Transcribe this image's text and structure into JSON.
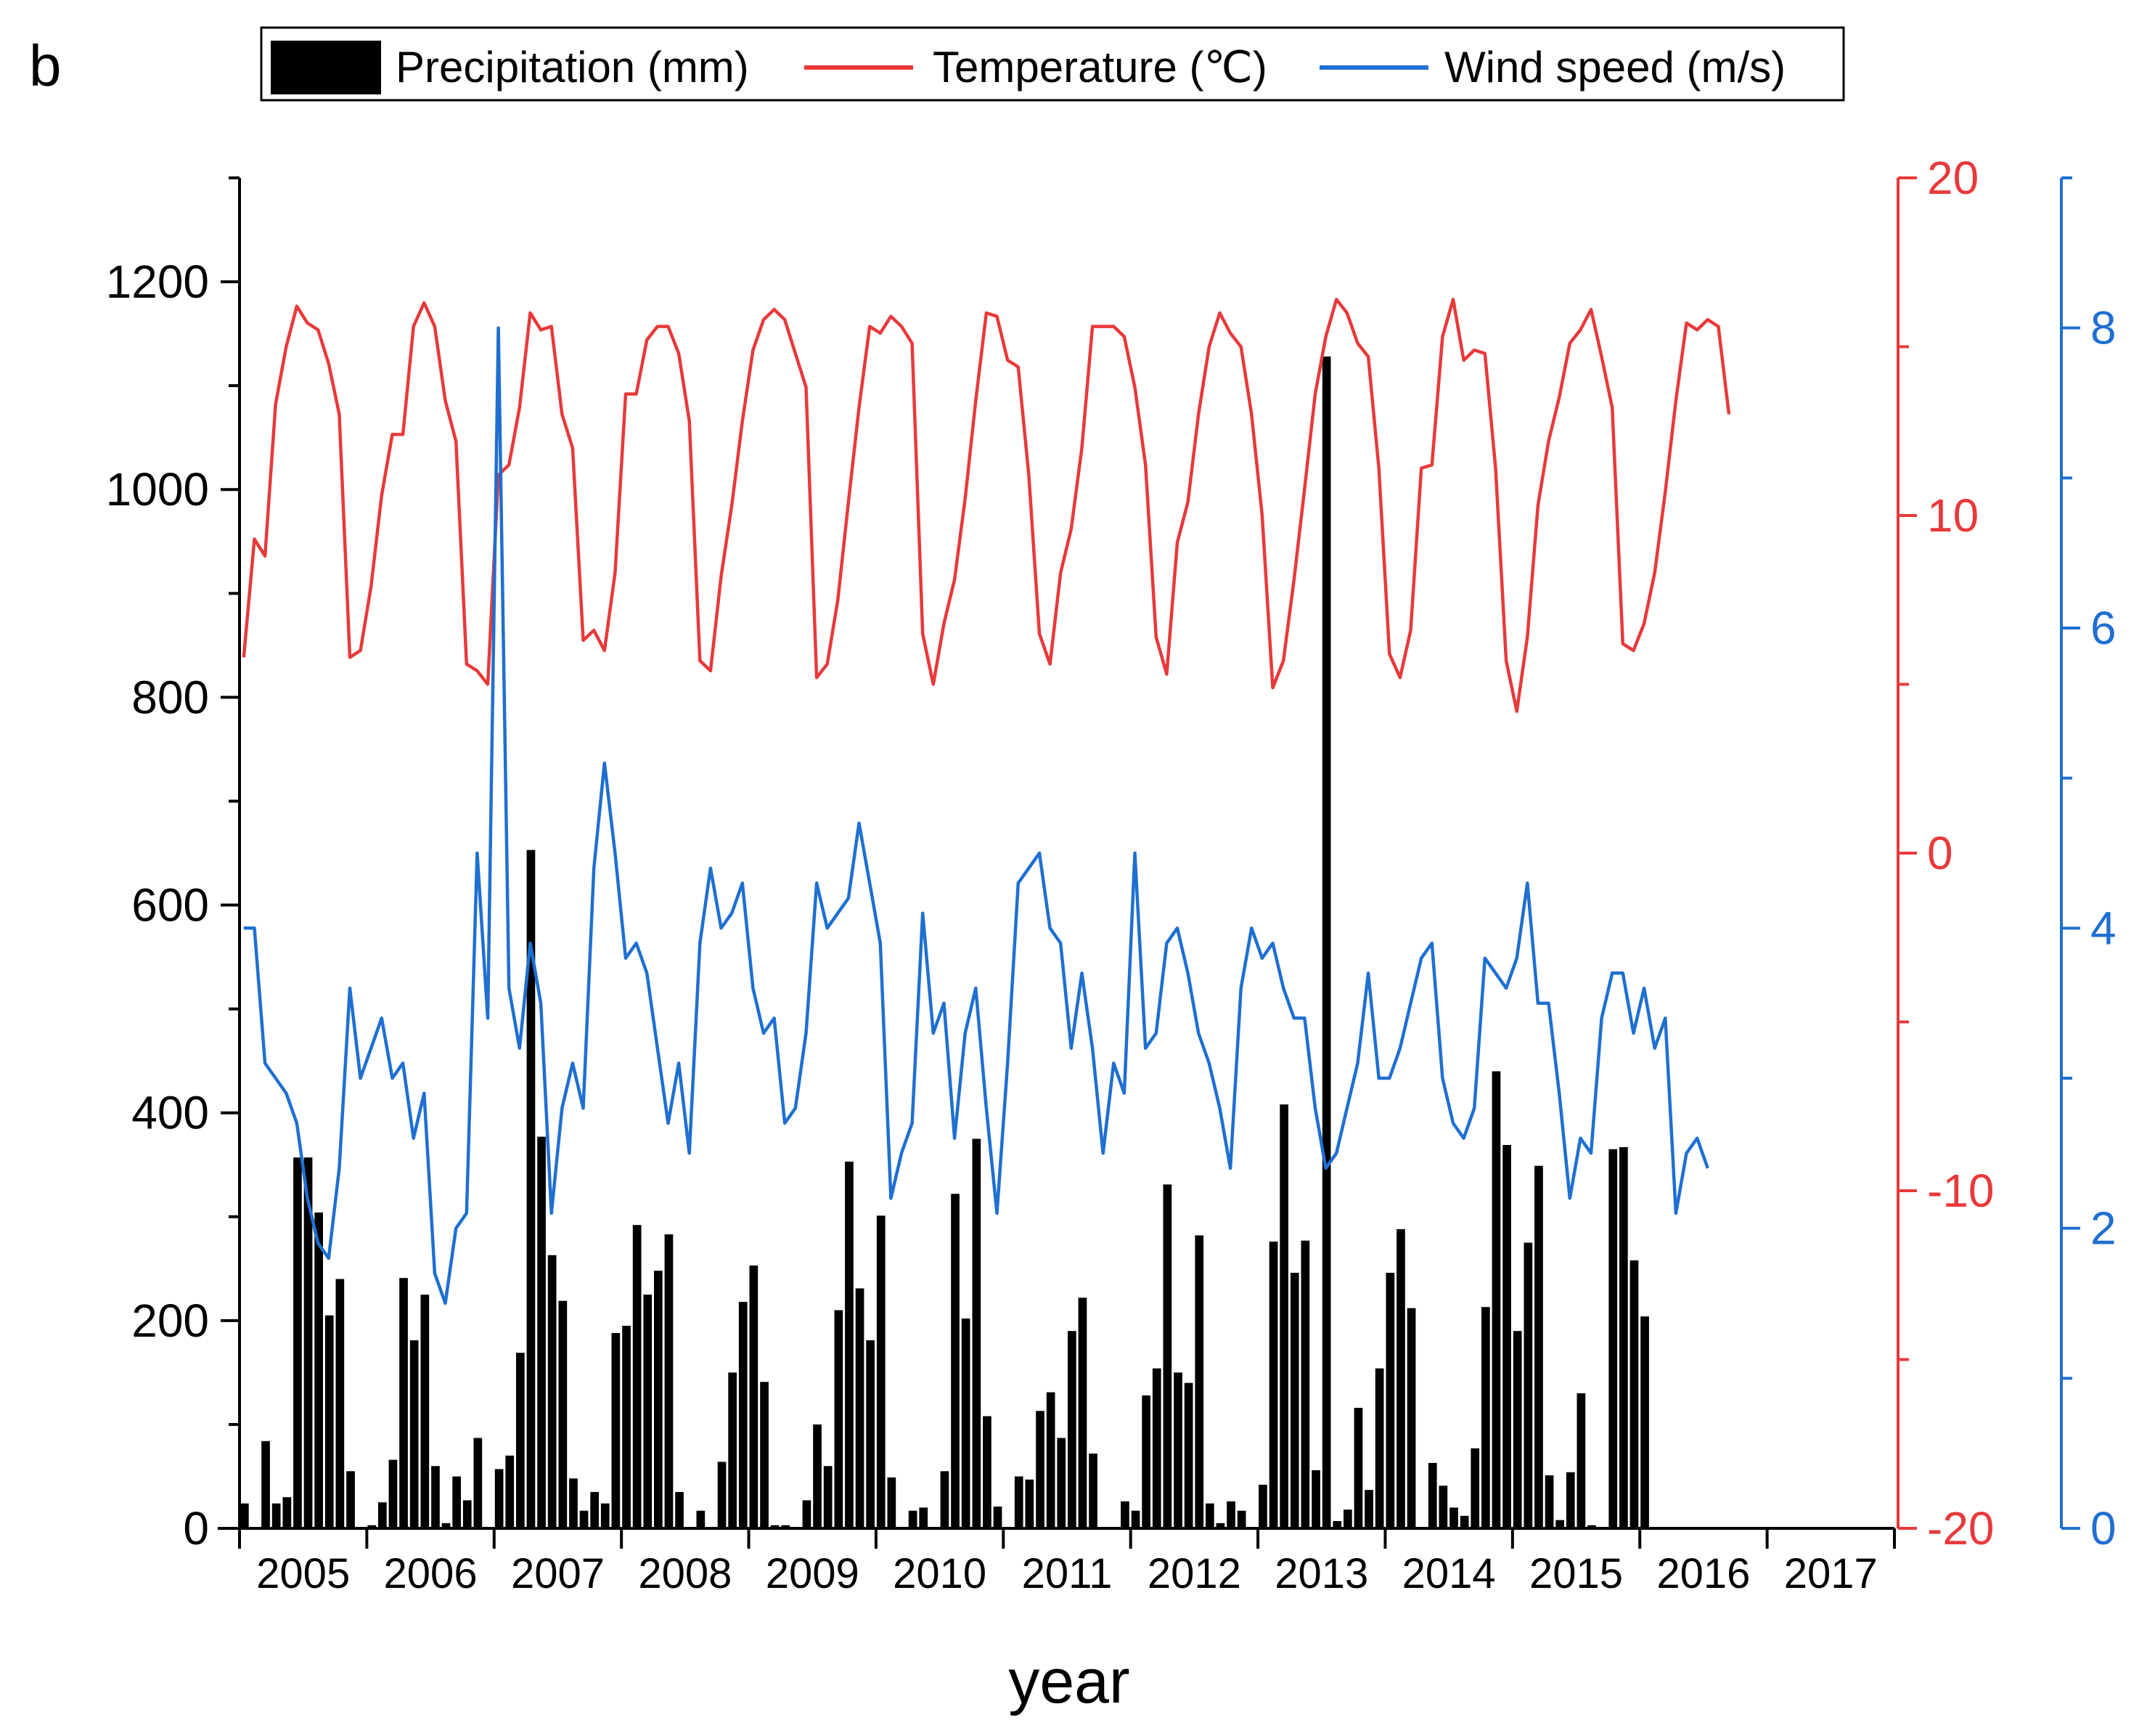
{
  "chart_data": {
    "type": "bar+line",
    "panel_label": "b",
    "xlabel": "year",
    "year_labels": [
      "2005",
      "2006",
      "2007",
      "2008",
      "2009",
      "2010",
      "2011",
      "2012",
      "2013",
      "2014",
      "2015",
      "2016",
      "2017"
    ],
    "legend": {
      "placement": "top-center",
      "entries": [
        "Precipitation (mm)",
        "Temperature (℃)",
        "Wind speed (m/s)"
      ]
    },
    "axes": {
      "left": {
        "label": "",
        "ylim": [
          0,
          1300
        ],
        "ticks": [
          0,
          200,
          400,
          600,
          800,
          1000,
          1200
        ],
        "tick_labels": [
          "0",
          "200",
          "400",
          "600",
          "800",
          "1000",
          "1200"
        ],
        "minor": 100,
        "color": "#000000"
      },
      "right1": {
        "label": "",
        "ylim": [
          -20,
          20
        ],
        "ticks": [
          -20,
          -10,
          0,
          10,
          20
        ],
        "tick_labels": [
          "-20",
          "-10",
          "0",
          "10",
          "20"
        ],
        "minor": 5,
        "color": "#e8393a"
      },
      "right2": {
        "label": "",
        "ylim": [
          0,
          9
        ],
        "ticks": [
          0,
          2,
          4,
          6,
          8
        ],
        "tick_labels": [
          "0",
          "2",
          "4",
          "6",
          "8"
        ],
        "minor": 1,
        "color": "#1f6fd1"
      }
    },
    "series": [
      {
        "name": "Precipitation (mm)",
        "type": "bar",
        "axis": "left",
        "color": "#000000",
        "values": [
          24,
          0,
          84,
          24,
          30,
          357,
          357,
          304,
          205,
          240,
          55,
          0,
          3,
          25,
          66,
          241,
          181,
          225,
          60,
          5,
          50,
          27,
          87,
          0,
          57,
          70,
          169,
          653,
          377,
          263,
          219,
          48,
          17,
          35,
          24,
          188,
          195,
          292,
          225,
          248,
          283,
          35,
          0,
          17,
          0,
          64,
          150,
          218,
          253,
          141,
          3,
          3,
          0,
          27,
          100,
          60,
          210,
          353,
          231,
          181,
          301,
          49,
          0,
          17,
          20,
          0,
          55,
          322,
          202,
          375,
          108,
          21,
          0,
          50,
          47,
          113,
          131,
          87,
          190,
          222,
          72,
          0,
          0,
          26,
          17,
          128,
          154,
          331,
          150,
          140,
          282,
          24,
          5,
          26,
          17,
          0,
          42,
          276,
          408,
          246,
          277,
          56,
          1128,
          7,
          18,
          116,
          37,
          154,
          246,
          288,
          212,
          0,
          63,
          41,
          20,
          12,
          77,
          213,
          440,
          369,
          190,
          275,
          349,
          51,
          8,
          54,
          130,
          3,
          0,
          365,
          367,
          258,
          204
        ]
      },
      {
        "name": "Temperature (℃)",
        "type": "line",
        "axis": "right1",
        "color": "#e8393a",
        "values": [
          5.8,
          9.3,
          8.8,
          13.3,
          15.0,
          16.2,
          15.7,
          15.5,
          14.5,
          13.0,
          5.8,
          6.0,
          7.9,
          10.6,
          12.4,
          12.4,
          15.6,
          16.3,
          15.6,
          13.4,
          12.2,
          5.6,
          5.4,
          5.0,
          11.2,
          11.5,
          13.2,
          16.0,
          15.5,
          15.6,
          13.0,
          12.0,
          6.3,
          6.6,
          6.0,
          8.3,
          13.6,
          13.6,
          15.2,
          15.6,
          15.6,
          14.8,
          12.8,
          5.7,
          5.4,
          8.2,
          10.3,
          12.8,
          14.9,
          15.8,
          16.1,
          15.8,
          14.8,
          13.8,
          5.2,
          5.6,
          7.5,
          10.4,
          13.2,
          15.6,
          15.4,
          15.9,
          15.6,
          15.1,
          6.5,
          5.0,
          6.8,
          8.1,
          10.5,
          13.4,
          16.0,
          15.9,
          14.6,
          14.4,
          11.2,
          6.5,
          5.6,
          8.3,
          9.6,
          12.0,
          15.6,
          15.6,
          15.6,
          15.3,
          13.8,
          11.5,
          6.4,
          5.3,
          9.2,
          10.4,
          13.0,
          15.0,
          16.0,
          15.4,
          15.0,
          13.0,
          10.0,
          4.9,
          5.7,
          8.1,
          10.8,
          13.6,
          15.3,
          16.4,
          16.0,
          15.1,
          14.7,
          11.4,
          5.9,
          5.2,
          6.6,
          11.4,
          11.5,
          15.3,
          16.4,
          14.6,
          14.9,
          14.8,
          11.4,
          5.7,
          4.2,
          6.4,
          10.3,
          12.2,
          13.5,
          15.1,
          15.5,
          16.1,
          14.7,
          13.2,
          6.2,
          6.0,
          6.8,
          8.3,
          10.7,
          13.4,
          15.7,
          15.5,
          15.8,
          15.6,
          13.0
        ]
      },
      {
        "name": "Wind speed (m/s)",
        "type": "line",
        "axis": "right2",
        "color": "#1f6fd1",
        "values": [
          4.0,
          4.0,
          3.1,
          3.0,
          2.9,
          2.7,
          2.2,
          1.9,
          1.8,
          2.4,
          3.6,
          3.0,
          3.2,
          3.4,
          3.0,
          3.1,
          2.6,
          2.9,
          1.7,
          1.5,
          2.0,
          2.1,
          4.5,
          3.4,
          8.0,
          3.6,
          3.2,
          3.9,
          3.5,
          2.1,
          2.8,
          3.1,
          2.8,
          4.4,
          5.1,
          4.5,
          3.8,
          3.9,
          3.7,
          3.2,
          2.7,
          3.1,
          2.5,
          3.9,
          4.4,
          4.0,
          4.1,
          4.3,
          3.6,
          3.3,
          3.4,
          2.7,
          2.8,
          3.3,
          4.3,
          4.0,
          4.1,
          4.2,
          4.7,
          4.3,
          3.9,
          2.2,
          2.5,
          2.7,
          4.1,
          3.3,
          3.5,
          2.6,
          3.3,
          3.6,
          2.8,
          2.1,
          3.1,
          4.3,
          4.4,
          4.5,
          4.0,
          3.9,
          3.2,
          3.7,
          3.2,
          2.5,
          3.1,
          2.9,
          4.5,
          3.2,
          3.3,
          3.9,
          4.0,
          3.7,
          3.3,
          3.1,
          2.8,
          2.4,
          3.6,
          4.0,
          3.8,
          3.9,
          3.6,
          3.4,
          3.4,
          2.8,
          2.4,
          2.5,
          2.8,
          3.1,
          3.7,
          3.0,
          3.0,
          3.2,
          3.5,
          3.8,
          3.9,
          3.0,
          2.7,
          2.6,
          2.8,
          3.8,
          3.7,
          3.6,
          3.8,
          4.3,
          3.5,
          3.5,
          2.9,
          2.2,
          2.6,
          2.5,
          3.4,
          3.7,
          3.7,
          3.3,
          3.6,
          3.2,
          3.4,
          2.1,
          2.5,
          2.6,
          2.4
        ]
      }
    ]
  }
}
